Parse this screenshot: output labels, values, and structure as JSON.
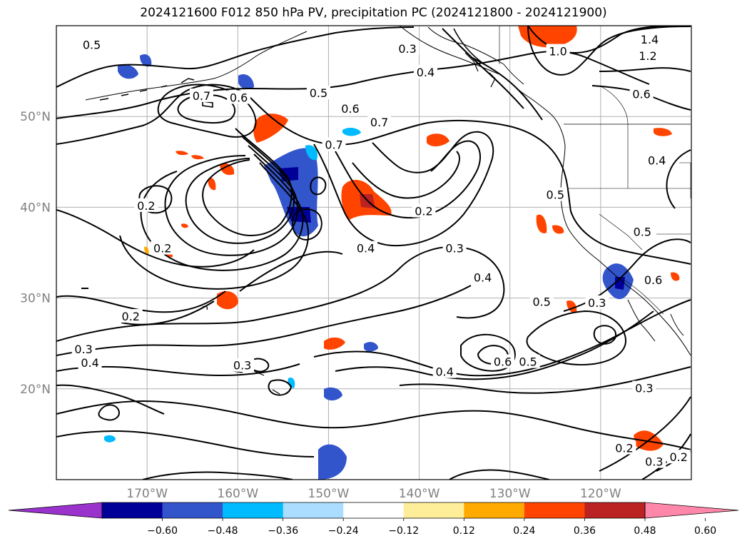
{
  "title": "2024121600 F012 850 hPa PV, precipitation PC (2024121800 - 2024121900)",
  "map": {
    "lon_range": [
      -180,
      -110
    ],
    "lat_range": [
      10,
      60
    ],
    "lat_ticks": [
      {
        "value": 50,
        "label": "50°N"
      },
      {
        "value": 40,
        "label": "40°N"
      },
      {
        "value": 30,
        "label": "30°N"
      },
      {
        "value": 20,
        "label": "20°N"
      }
    ],
    "lon_ticks": [
      {
        "value": -170,
        "label": "170°W"
      },
      {
        "value": -160,
        "label": "160°W"
      },
      {
        "value": -150,
        "label": "150°W"
      },
      {
        "value": -140,
        "label": "140°W"
      },
      {
        "value": -130,
        "label": "130°W"
      },
      {
        "value": -120,
        "label": "120°W"
      }
    ],
    "grid": true,
    "contour_color": "#000000",
    "contour_labels": [
      {
        "text": "0.5",
        "lon": -176.1,
        "lat": 57.9
      },
      {
        "text": "0.7",
        "lon": -164.0,
        "lat": 52.3
      },
      {
        "text": "0.6",
        "lon": -159.9,
        "lat": 52.1
      },
      {
        "text": "0.5",
        "lon": -151.1,
        "lat": 52.6
      },
      {
        "text": "0.6",
        "lon": -147.6,
        "lat": 50.9
      },
      {
        "text": "0.7",
        "lon": -144.4,
        "lat": 49.4
      },
      {
        "text": "0.7",
        "lon": -149.4,
        "lat": 46.9
      },
      {
        "text": "0.3",
        "lon": -141.3,
        "lat": 57.5
      },
      {
        "text": "0.4",
        "lon": -139.3,
        "lat": 54.9
      },
      {
        "text": "1.0",
        "lon": -124.7,
        "lat": 57.2
      },
      {
        "text": "1.4",
        "lon": -114.6,
        "lat": 58.5
      },
      {
        "text": "1.2",
        "lon": -114.8,
        "lat": 56.7
      },
      {
        "text": "0.6",
        "lon": -115.5,
        "lat": 52.5
      },
      {
        "text": "0.2",
        "lon": -170.1,
        "lat": 40.2
      },
      {
        "text": "0.2",
        "lon": -168.3,
        "lat": 35.5
      },
      {
        "text": "0.2",
        "lon": -171.8,
        "lat": 28.0
      },
      {
        "text": "0.2",
        "lon": -139.5,
        "lat": 39.6
      },
      {
        "text": "0.4",
        "lon": -145.9,
        "lat": 35.5
      },
      {
        "text": "0.3",
        "lon": -136.1,
        "lat": 35.5
      },
      {
        "text": "0.4",
        "lon": -133.0,
        "lat": 32.3
      },
      {
        "text": "0.5",
        "lon": -125.0,
        "lat": 41.4
      },
      {
        "text": "0.5",
        "lon": -115.4,
        "lat": 37.3
      },
      {
        "text": "0.6",
        "lon": -114.2,
        "lat": 32.0
      },
      {
        "text": "0.5",
        "lon": -126.5,
        "lat": 29.6
      },
      {
        "text": "0.3",
        "lon": -120.4,
        "lat": 29.5
      },
      {
        "text": "0.4",
        "lon": -113.8,
        "lat": 45.2
      },
      {
        "text": "0.3",
        "lon": -177.0,
        "lat": 24.4
      },
      {
        "text": "0.4",
        "lon": -176.3,
        "lat": 22.9
      },
      {
        "text": "0.3",
        "lon": -159.5,
        "lat": 22.6
      },
      {
        "text": "0.4",
        "lon": -137.2,
        "lat": 21.9
      },
      {
        "text": "0.6",
        "lon": -130.8,
        "lat": 23.0
      },
      {
        "text": "0.5",
        "lon": -128.0,
        "lat": 23.0
      },
      {
        "text": "0.3",
        "lon": -115.2,
        "lat": 20.1
      },
      {
        "text": "0.2",
        "lon": -117.4,
        "lat": 13.5
      },
      {
        "text": "0.3",
        "lon": -114.1,
        "lat": 12.0
      },
      {
        "text": "0.2",
        "lon": -111.4,
        "lat": 12.5
      }
    ]
  },
  "colorbar": {
    "colors": [
      "#9933cc",
      "#000099",
      "#3355cc",
      "#00bbff",
      "#aaddff",
      "#ffffff",
      "#ffee99",
      "#ffaa00",
      "#ff4400",
      "#bb2222",
      "#ff88aa"
    ],
    "ticks": [
      "−0.60",
      "−0.48",
      "−0.36",
      "−0.24",
      "−0.12",
      "0.12",
      "0.24",
      "0.36",
      "0.48",
      "0.60"
    ]
  }
}
